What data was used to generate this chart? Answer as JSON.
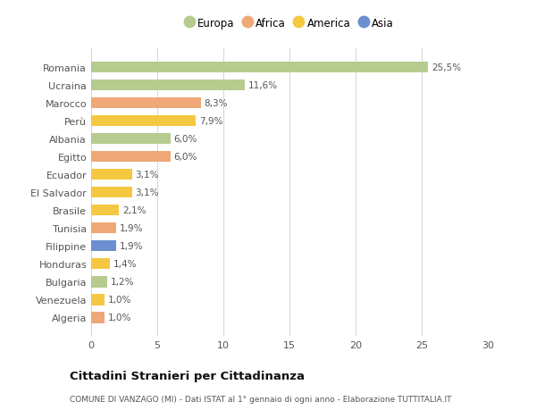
{
  "categories": [
    "Algeria",
    "Venezuela",
    "Bulgaria",
    "Honduras",
    "Filippine",
    "Tunisia",
    "Brasile",
    "El Salvador",
    "Ecuador",
    "Egitto",
    "Albania",
    "Perù",
    "Marocco",
    "Ucraina",
    "Romania"
  ],
  "values": [
    1.0,
    1.0,
    1.2,
    1.4,
    1.9,
    1.9,
    2.1,
    3.1,
    3.1,
    6.0,
    6.0,
    7.9,
    8.3,
    11.6,
    25.5
  ],
  "labels": [
    "1,0%",
    "1,0%",
    "1,2%",
    "1,4%",
    "1,9%",
    "1,9%",
    "2,1%",
    "3,1%",
    "3,1%",
    "6,0%",
    "6,0%",
    "7,9%",
    "8,3%",
    "11,6%",
    "25,5%"
  ],
  "colors": [
    "#f0a878",
    "#f5c842",
    "#b5cc8e",
    "#f5c842",
    "#6b8fcf",
    "#f0a878",
    "#f5c842",
    "#f5c842",
    "#f5c842",
    "#f0a878",
    "#b5cc8e",
    "#f5c842",
    "#f0a878",
    "#b5cc8e",
    "#b5cc8e"
  ],
  "legend_labels": [
    "Europa",
    "Africa",
    "America",
    "Asia"
  ],
  "legend_colors": [
    "#b5cc8e",
    "#f0a878",
    "#f5c842",
    "#6b8fcf"
  ],
  "title": "Cittadini Stranieri per Cittadinanza",
  "subtitle": "COMUNE DI VANZAGO (MI) - Dati ISTAT al 1° gennaio di ogni anno - Elaborazione TUTTITALIA.IT",
  "xlim": [
    0,
    30
  ],
  "xticks": [
    0,
    5,
    10,
    15,
    20,
    25,
    30
  ],
  "background_color": "#ffffff",
  "grid_color": "#d8d8d8",
  "bar_height": 0.62
}
